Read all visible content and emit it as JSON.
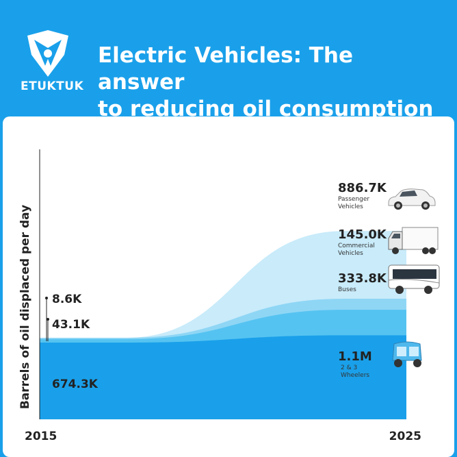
{
  "brand": {
    "name": "ETUKTUK"
  },
  "header": {
    "title_line1": "Electric Vehicles: The answer",
    "title_line2": "to reducing oil consumption"
  },
  "colors": {
    "background": "#1aa0ea",
    "card": "#ffffff",
    "wheelers": "#1aa0ea",
    "buses": "#55c3f1",
    "commercial": "#8fd6f5",
    "passenger": "#c9ebfa"
  },
  "chart_data": {
    "type": "area",
    "title": "Electric Vehicles: The answer to reducing oil consumption",
    "ylabel": "Barrels of oil displaced per day",
    "xlabel": "",
    "x": [
      "2015",
      "2025"
    ],
    "x_tick_labels": [
      "2015",
      "2025"
    ],
    "stacked": true,
    "series": [
      {
        "name": "2 & 3 Wheelers",
        "values": [
          674.3,
          1100
        ],
        "start_label": "674.3K",
        "end_label": "1.1M",
        "icon": "tuktuk-icon"
      },
      {
        "name": "Buses",
        "values": [
          43.1,
          333.8
        ],
        "start_label": "43.1K",
        "end_label": "333.8K",
        "icon": "bus-icon"
      },
      {
        "name": "Commercial Vehicles",
        "values": [
          8.6,
          145.0
        ],
        "start_label": "8.6K",
        "end_label": "145.0K",
        "icon": "truck-icon"
      },
      {
        "name": "Passenger Vehicles",
        "values": [
          0,
          886.7
        ],
        "start_label": "",
        "end_label": "886.7K",
        "icon": "car-icon"
      }
    ],
    "value_units": "thousand barrels per day",
    "legend": "labels at right end of each band",
    "grid": false
  }
}
